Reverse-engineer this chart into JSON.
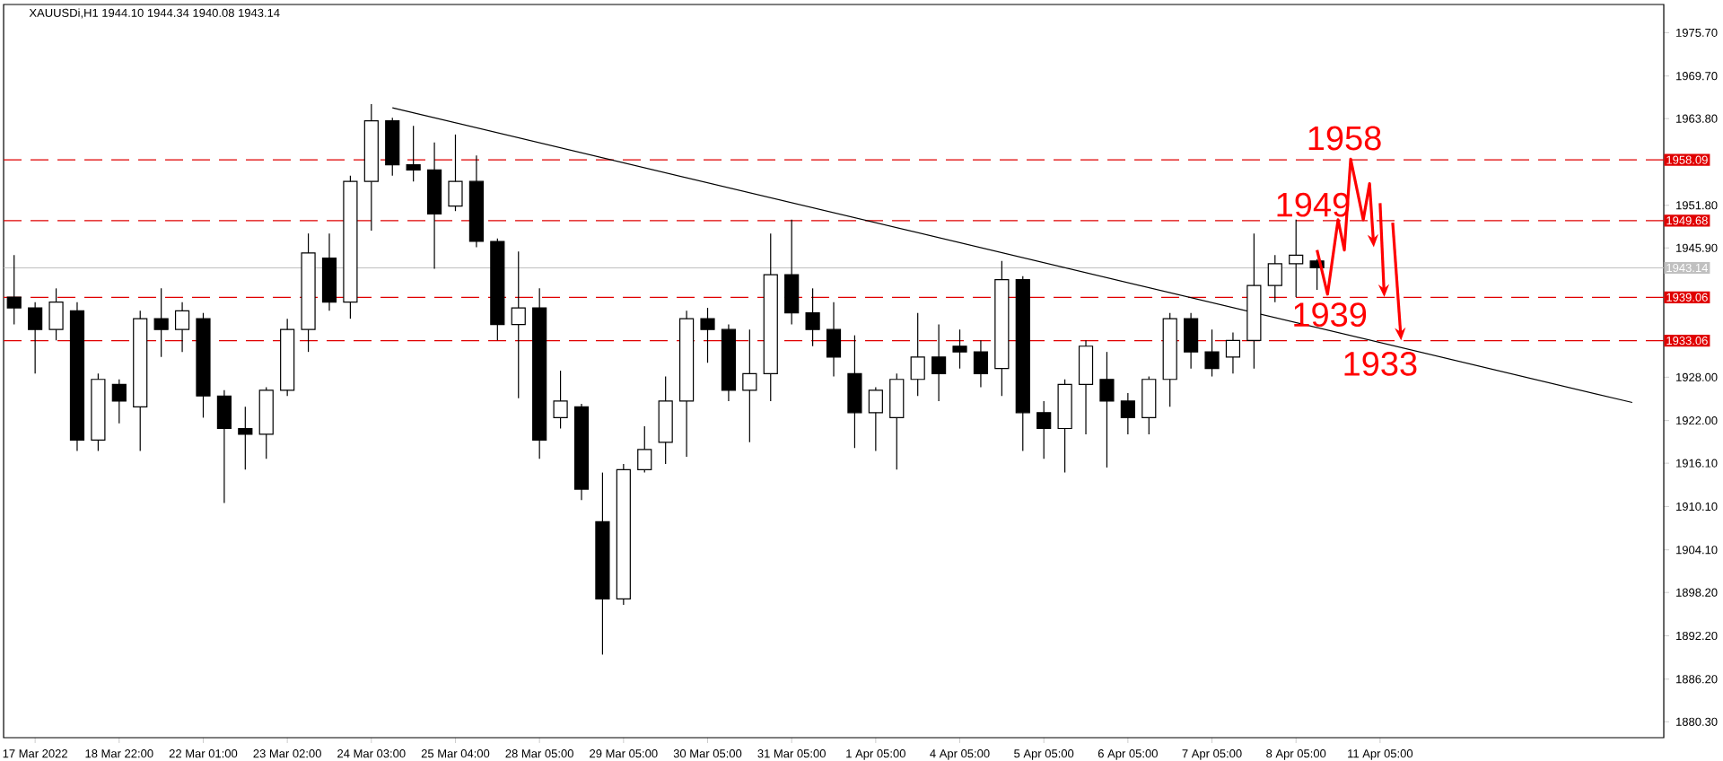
{
  "chart_data": {
    "type": "candlestick",
    "title": "XAUUSDi,H1  1944.10 1944.34 1940.08 1943.14",
    "color": "#000000",
    "categories": [
      null,
      "17 Mar 2022",
      null,
      null,
      null,
      "18 Mar 22:00",
      null,
      null,
      null,
      "22 Mar 01:00",
      null,
      null,
      null,
      "23 Mar 02:00",
      null,
      null,
      null,
      "24 Mar 03:00",
      null,
      null,
      null,
      "25 Mar 04:00",
      null,
      null,
      null,
      "28 Mar 05:00",
      null,
      null,
      null,
      "29 Mar 05:00",
      null,
      null,
      null,
      "30 Mar 05:00",
      null,
      null,
      null,
      "31 Mar 05:00",
      null,
      null,
      null,
      "1 Apr 05:00",
      null,
      null,
      null,
      "4 Apr 05:00",
      null,
      null,
      null,
      "5 Apr 05:00",
      null,
      null,
      null,
      "6 Apr 05:00",
      null,
      null,
      null,
      "7 Apr 05:00",
      null,
      null,
      null,
      "8 Apr 05:00",
      null,
      null,
      null,
      "11 Apr 05:00",
      null,
      null,
      null,
      null,
      null,
      null,
      null,
      null,
      null,
      null,
      null,
      null,
      null
    ],
    "ohlc": [
      [
        1939.1,
        1944.9,
        1935.3,
        1937.6
      ],
      [
        1937.6,
        1938.4,
        1928.5,
        1934.6
      ],
      [
        1934.6,
        1940.3,
        1933.1,
        1938.4
      ],
      [
        1937.2,
        1938.4,
        1917.8,
        1919.3
      ],
      [
        1919.3,
        1928.5,
        1917.8,
        1927.7
      ],
      [
        1927.0,
        1927.7,
        1921.6,
        1924.7
      ],
      [
        1923.9,
        1937.2,
        1917.8,
        1936.1
      ],
      [
        1936.1,
        1940.3,
        1930.8,
        1934.6
      ],
      [
        1934.6,
        1938.4,
        1931.5,
        1937.2
      ],
      [
        1936.1,
        1936.9,
        1922.4,
        1925.4
      ],
      [
        1925.4,
        1926.2,
        1910.6,
        1920.9
      ],
      [
        1920.9,
        1923.9,
        1915.2,
        1920.1
      ],
      [
        1920.1,
        1926.6,
        1916.7,
        1926.2
      ],
      [
        1926.2,
        1936.1,
        1925.4,
        1934.6
      ],
      [
        1934.6,
        1947.9,
        1931.5,
        1945.2
      ],
      [
        1944.5,
        1947.9,
        1937.2,
        1938.4
      ],
      [
        1938.4,
        1955.9,
        1936.1,
        1955.1
      ],
      [
        1955.1,
        1965.8,
        1948.3,
        1963.5
      ],
      [
        1963.5,
        1963.9,
        1955.9,
        1957.4
      ],
      [
        1957.4,
        1962.8,
        1955.1,
        1956.7
      ],
      [
        1956.7,
        1960.5,
        1943.0,
        1950.6
      ],
      [
        1951.7,
        1961.6,
        1951.0,
        1955.1
      ],
      [
        1955.1,
        1958.7,
        1946.0,
        1946.8
      ],
      [
        1946.8,
        1947.2,
        1933.1,
        1935.3
      ],
      [
        1935.3,
        1945.4,
        1925.1,
        1937.6
      ],
      [
        1937.6,
        1940.3,
        1916.7,
        1919.3
      ],
      [
        1922.4,
        1928.9,
        1920.9,
        1924.7
      ],
      [
        1923.9,
        1924.3,
        1911.0,
        1912.5
      ],
      [
        1908.0,
        1914.8,
        1889.6,
        1897.3
      ],
      [
        1897.3,
        1916.0,
        1896.5,
        1915.2
      ],
      [
        1915.2,
        1921.2,
        1914.8,
        1918.0
      ],
      [
        1919.0,
        1928.1,
        1916.0,
        1924.7
      ],
      [
        1924.7,
        1937.2,
        1917.0,
        1936.1
      ],
      [
        1936.1,
        1937.6,
        1930.0,
        1934.6
      ],
      [
        1934.6,
        1935.3,
        1924.7,
        1926.2
      ],
      [
        1926.2,
        1934.6,
        1919.0,
        1928.5
      ],
      [
        1928.5,
        1947.9,
        1924.7,
        1942.2
      ],
      [
        1942.2,
        1949.8,
        1935.3,
        1936.9
      ],
      [
        1936.9,
        1940.3,
        1932.3,
        1934.6
      ],
      [
        1934.6,
        1938.4,
        1928.1,
        1930.8
      ],
      [
        1928.5,
        1933.8,
        1918.2,
        1923.1
      ],
      [
        1923.1,
        1926.6,
        1917.8,
        1926.2
      ],
      [
        1922.4,
        1928.5,
        1915.2,
        1927.7
      ],
      [
        1927.7,
        1936.9,
        1925.4,
        1930.8
      ],
      [
        1930.8,
        1935.3,
        1924.7,
        1928.5
      ],
      [
        1932.3,
        1934.6,
        1929.2,
        1931.5
      ],
      [
        1931.5,
        1933.1,
        1926.6,
        1928.5
      ],
      [
        1929.2,
        1944.1,
        1925.4,
        1941.5
      ],
      [
        1941.5,
        1942.0,
        1917.8,
        1923.1
      ],
      [
        1923.1,
        1924.7,
        1916.7,
        1920.9
      ],
      [
        1920.9,
        1927.7,
        1914.8,
        1927.0
      ],
      [
        1927.0,
        1933.1,
        1920.1,
        1932.3
      ],
      [
        1927.7,
        1931.5,
        1915.5,
        1924.7
      ],
      [
        1924.7,
        1925.8,
        1920.1,
        1922.4
      ],
      [
        1922.4,
        1928.1,
        1920.1,
        1927.7
      ],
      [
        1927.7,
        1936.9,
        1923.9,
        1936.1
      ],
      [
        1936.1,
        1936.9,
        1929.2,
        1931.5
      ],
      [
        1931.5,
        1934.6,
        1928.1,
        1929.2
      ],
      [
        1930.8,
        1934.2,
        1928.5,
        1933.1
      ],
      [
        1933.1,
        1947.9,
        1929.2,
        1940.7
      ],
      [
        1940.7,
        1944.9,
        1938.4,
        1943.7
      ],
      [
        1943.7,
        1949.8,
        1939.1,
        1944.9
      ],
      [
        1944.1,
        1944.34,
        1940.08,
        1943.14
      ],
      null,
      null,
      null,
      null,
      null,
      null,
      null,
      null,
      null,
      null,
      null,
      null,
      null,
      null,
      null,
      null
    ],
    "series": [
      {
        "type": "line",
        "color": "#000000",
        "values": [
          null,
          null,
          null,
          null,
          null,
          null,
          null,
          null,
          null,
          null,
          null,
          null,
          null,
          null,
          null,
          null,
          null,
          null,
          1965.3,
          null,
          null,
          null,
          null,
          null,
          null,
          null,
          null,
          null,
          null,
          null,
          null,
          null,
          null,
          null,
          null,
          null,
          null,
          null,
          null,
          null,
          null,
          null,
          null,
          null,
          null,
          null,
          null,
          null,
          null,
          null,
          null,
          null,
          null,
          null,
          null,
          null,
          null,
          null,
          null,
          null,
          null,
          null,
          null,
          null,
          null,
          null,
          null,
          null,
          null,
          null,
          null,
          null,
          null,
          null,
          null,
          null,
          null,
          1924.5,
          null
        ]
      }
    ],
    "ref_lines": [
      {
        "axis": "y",
        "value": 1958.09,
        "label": "1958.09",
        "color": "#e00000",
        "line_style": "dashed"
      },
      {
        "axis": "y",
        "value": 1949.68,
        "label": "1949.68",
        "color": "#e00000",
        "line_style": "dashed"
      },
      {
        "axis": "y",
        "value": 1943.14,
        "label": "1943.14",
        "color": "#c0c0c0",
        "line_style": "solid"
      },
      {
        "axis": "y",
        "value": 1939.06,
        "label": "1939.06",
        "color": "#e00000",
        "line_style": "dashed"
      },
      {
        "axis": "y",
        "value": 1933.06,
        "label": "1933.06",
        "color": "#e00000",
        "line_style": "dashed"
      }
    ],
    "annotations": [
      {
        "text": "1958",
        "y": 1958.09
      },
      {
        "text": "1949",
        "y": 1949.68
      },
      {
        "text": "1939",
        "y": 1939.06
      },
      {
        "text": "1933",
        "y": 1933.06
      }
    ],
    "ylim": [
      1878.1,
      1979.6
    ],
    "yticks": [
      {
        "value": 1975.7,
        "label": "1975.70"
      },
      {
        "value": 1969.7,
        "label": "1969.70"
      },
      {
        "value": 1963.8,
        "label": "1963.80"
      },
      {
        "value": 1951.8,
        "label": "1951.80"
      },
      {
        "value": 1945.9,
        "label": "1945.90"
      },
      {
        "value": 1928.0,
        "label": "1928.00"
      },
      {
        "value": 1922.0,
        "label": "1922.00"
      },
      {
        "value": 1916.1,
        "label": "1916.10"
      },
      {
        "value": 1910.1,
        "label": "1910.10"
      },
      {
        "value": 1904.1,
        "label": "1904.10"
      },
      {
        "value": 1898.2,
        "label": "1898.20"
      },
      {
        "value": 1892.2,
        "label": "1892.20"
      },
      {
        "value": 1886.2,
        "label": "1886.20"
      },
      {
        "value": 1880.3,
        "label": "1880.30"
      }
    ],
    "grid": false
  }
}
